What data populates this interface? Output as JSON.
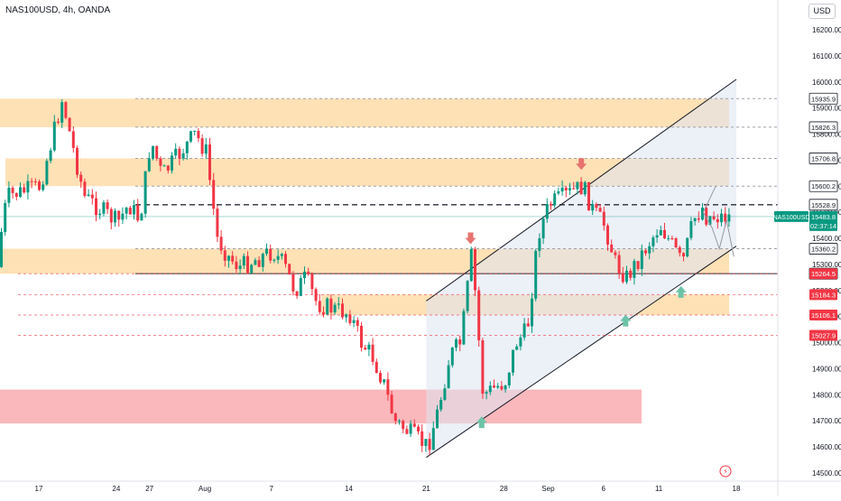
{
  "header": {
    "title": "NAS100USD, 4h, OANDA",
    "currency": "USD"
  },
  "price_label": {
    "symbol": "NAS100USD",
    "price": "15483.8",
    "countdown": "02:37:14"
  },
  "colors": {
    "bull": "#089981",
    "bear": "#f23645",
    "zone": "#ffc97a",
    "zone_red": "#f8a0a6",
    "channel_fill": "#dde3f0",
    "arrow_bear": "#e8736f",
    "arrow_bull": "#6cc3a8"
  },
  "chart_data": {
    "type": "candlestick",
    "title": "NAS100USD, 4h, OANDA",
    "ylim": [
      14500,
      16300
    ],
    "y_ticks": [
      14500,
      14600,
      14700,
      14800,
      14900,
      15000,
      15100,
      15200,
      15300,
      15400,
      15500,
      15600,
      15700,
      15800,
      15900,
      16000,
      16100,
      16200
    ],
    "x_ticks": [
      {
        "label": "17",
        "date": "2023-07-17"
      },
      {
        "label": "24",
        "date": "2023-07-24"
      },
      {
        "label": "27",
        "date": "2023-07-27"
      },
      {
        "label": "Aug",
        "date": "2023-08-01"
      },
      {
        "label": "7",
        "date": "2023-08-07"
      },
      {
        "label": "14",
        "date": "2023-08-14"
      },
      {
        "label": "21",
        "date": "2023-08-21"
      },
      {
        "label": "28",
        "date": "2023-08-28"
      },
      {
        "label": "Sep",
        "date": "2023-09-01"
      },
      {
        "label": "6",
        "date": "2023-09-06"
      },
      {
        "label": "11",
        "date": "2023-09-11"
      },
      {
        "label": "18",
        "date": "2023-09-18"
      }
    ],
    "price_path": [
      [
        "2023-07-13",
        15290
      ],
      [
        "2023-07-14",
        15560
      ],
      [
        "2023-07-17",
        15600
      ],
      [
        "2023-07-19",
        15935
      ],
      [
        "2023-07-20",
        15740
      ],
      [
        "2023-07-21",
        15560
      ],
      [
        "2023-07-24",
        15460
      ],
      [
        "2023-07-25",
        15530
      ],
      [
        "2023-07-26",
        15470
      ],
      [
        "2023-07-27",
        15780
      ],
      [
        "2023-07-28",
        15640
      ],
      [
        "2023-07-31",
        15800
      ],
      [
        "2023-08-01",
        15730
      ],
      [
        "2023-08-02",
        15400
      ],
      [
        "2023-08-03",
        15330
      ],
      [
        "2023-08-04",
        15290
      ],
      [
        "2023-08-07",
        15350
      ],
      [
        "2023-08-08",
        15300
      ],
      [
        "2023-08-09",
        15200
      ],
      [
        "2023-08-10",
        15250
      ],
      [
        "2023-08-11",
        15150
      ],
      [
        "2023-08-14",
        15110
      ],
      [
        "2023-08-15",
        15000
      ],
      [
        "2023-08-16",
        14950
      ],
      [
        "2023-08-17",
        14850
      ],
      [
        "2023-08-18",
        14700
      ],
      [
        "2023-08-21",
        14600
      ],
      [
        "2023-08-22",
        14750
      ],
      [
        "2023-08-23",
        14950
      ],
      [
        "2023-08-24",
        15000
      ],
      [
        "2023-08-25",
        15350
      ],
      [
        "2023-08-26",
        14800
      ],
      [
        "2023-08-28",
        14850
      ],
      [
        "2023-08-29",
        15000
      ],
      [
        "2023-08-30",
        15050
      ],
      [
        "2023-08-31",
        15420
      ],
      [
        "2023-09-01",
        15530
      ],
      [
        "2023-09-04",
        15600
      ],
      [
        "2023-09-05",
        15500
      ],
      [
        "2023-09-06",
        15450
      ],
      [
        "2023-09-07",
        15300
      ],
      [
        "2023-09-08",
        15250
      ],
      [
        "2023-09-11",
        15450
      ],
      [
        "2023-09-12",
        15380
      ],
      [
        "2023-09-13",
        15300
      ],
      [
        "2023-09-14",
        15470
      ],
      [
        "2023-09-15",
        15528
      ],
      [
        "2023-09-15b",
        15483.8
      ]
    ],
    "zones": [
      {
        "color": "orange",
        "range": [
          15826.3,
          15935.9
        ]
      },
      {
        "color": "orange",
        "range": [
          15600.2,
          15706.8
        ]
      },
      {
        "color": "orange",
        "range": [
          15264.6,
          15360.2
        ]
      },
      {
        "color": "orange",
        "range": [
          15106.1,
          15184.3
        ]
      },
      {
        "color": "red",
        "range": [
          14690,
          14820
        ]
      }
    ],
    "price_levels": [
      {
        "label": "15935.9",
        "value": 15935.9,
        "style": "box"
      },
      {
        "label": "15826.3",
        "value": 15826.3,
        "style": "box"
      },
      {
        "label": "15706.8",
        "value": 15706.8,
        "style": "box"
      },
      {
        "label": "15600.2",
        "value": 15600.2,
        "style": "box"
      },
      {
        "label": "15528.9",
        "value": 15528.9,
        "style": "box"
      },
      {
        "label": "15360.2",
        "value": 15360.2,
        "style": "box"
      },
      {
        "label": "15264.6",
        "value": 15264.6,
        "style": "box"
      },
      {
        "label": "15264.5",
        "value": 15264.5,
        "style": "red"
      },
      {
        "label": "15184.3",
        "value": 15184.3,
        "style": "red"
      },
      {
        "label": "15106.1",
        "value": 15106.1,
        "style": "red"
      },
      {
        "label": "15027.9",
        "value": 15027.9,
        "style": "red"
      }
    ],
    "channel": {
      "lower": [
        [
          "2023-08-21",
          14560
        ],
        [
          "2023-09-18",
          15370
        ]
      ],
      "upper": [
        [
          "2023-08-21",
          15160
        ],
        [
          "2023-09-18",
          16010
        ]
      ]
    },
    "markers": [
      {
        "type": "bear",
        "date": "2023-08-25",
        "price": 15395
      },
      {
        "type": "bear",
        "date": "2023-09-04",
        "price": 15680
      },
      {
        "type": "bull",
        "date": "2023-08-26",
        "price": 14700
      },
      {
        "type": "bull",
        "date": "2023-09-08",
        "price": 15090
      },
      {
        "type": "bull",
        "date": "2023-09-13",
        "price": 15200
      }
    ]
  }
}
